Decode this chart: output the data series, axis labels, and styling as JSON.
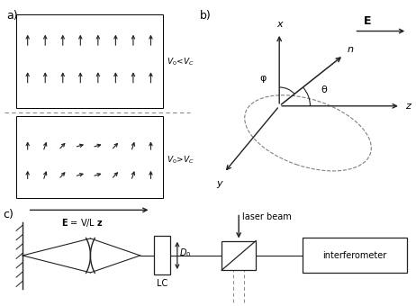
{
  "bg_color": "#ffffff",
  "arrow_color": "#222222",
  "dashed_color": "#888888",
  "panel_a": {
    "label": "a)",
    "top_angles": [
      90,
      90,
      90,
      90,
      90,
      90,
      90,
      90
    ],
    "bot_angles": [
      90,
      70,
      45,
      15,
      15,
      45,
      70,
      90
    ],
    "label_top": "V_0<V_C",
    "label_bot": "V_0>V_C"
  },
  "panel_b": {
    "label": "b)",
    "phi_label": "φ",
    "theta_label": "θ",
    "n_label": "n",
    "E_label": "E"
  },
  "panel_c": {
    "label": "c)",
    "D0_label": "D_0",
    "LC_label": "LC",
    "laser_label": "laser beam",
    "interferometer_label": "interferometer"
  }
}
